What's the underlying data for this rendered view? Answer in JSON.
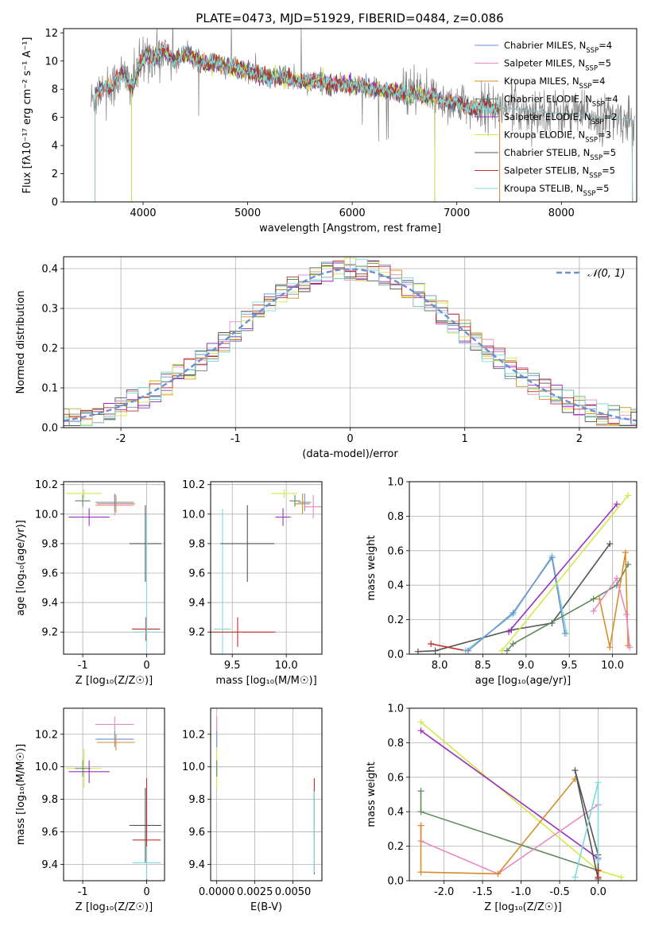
{
  "figure_title": "PLATE=0473, MJD=51929, FIBERID=0484, z=0.086",
  "colors": {
    "chabrier_miles": "#6f8fcf",
    "salpeter_miles": "#e78ac3",
    "kroupa_miles": "#d98c2a",
    "chabrier_elodie": "#5f8a5f",
    "salpeter_elodie": "#9b30c0",
    "kroupa_elodie": "#d4e84a",
    "chabrier_stelib": "#555555",
    "salpeter_stelib": "#c0302a",
    "kroupa_stelib": "#7fdada",
    "data": "#808080",
    "gaussian": "#6a8fd8"
  },
  "legend_spectrum": [
    {
      "label": "Chabrier MILES, N",
      "sub": "SSP",
      "suffix": "=4",
      "color_key": "chabrier_miles"
    },
    {
      "label": "Salpeter MILES, N",
      "sub": "SSP",
      "suffix": "=5",
      "color_key": "salpeter_miles"
    },
    {
      "label": "Kroupa MILES, N",
      "sub": "SSP",
      "suffix": "=4",
      "color_key": "kroupa_miles"
    },
    {
      "label": "Chabrier ELODIE, N",
      "sub": "SSP",
      "suffix": "=4",
      "color_key": "chabrier_elodie"
    },
    {
      "label": "Salpeter ELODIE, N",
      "sub": "SSP",
      "suffix": "=2",
      "color_key": "salpeter_elodie"
    },
    {
      "label": "Kroupa ELODIE, N",
      "sub": "SSP",
      "suffix": "=3",
      "color_key": "kroupa_elodie"
    },
    {
      "label": "Chabrier STELIB, N",
      "sub": "SSP",
      "suffix": "=5",
      "color_key": "chabrier_stelib"
    },
    {
      "label": "Salpeter STELIB, N",
      "sub": "SSP",
      "suffix": "=5",
      "color_key": "salpeter_stelib"
    },
    {
      "label": "Kroupa STELIB, N",
      "sub": "SSP",
      "suffix": "=5",
      "color_key": "kroupa_stelib"
    }
  ],
  "chart_data": [
    {
      "id": "spectrum",
      "type": "line",
      "xlabel": "wavelength [Angstrom, rest frame]",
      "ylabel": "Flux [fλ10⁻¹⁷ erg cm⁻² s⁻¹ A⁻¹]",
      "xlim": [
        3240,
        8720
      ],
      "ylim": [
        0,
        12.3
      ],
      "xticks": [
        4000,
        5000,
        6000,
        7000,
        8000
      ],
      "yticks": [
        0,
        2,
        4,
        6,
        8,
        10,
        12
      ],
      "grid": false,
      "legend": "upper right",
      "series_shape": [
        [
          3500,
          7.0
        ],
        [
          3550,
          7.6
        ],
        [
          3600,
          8.1
        ],
        [
          3650,
          8.3
        ],
        [
          3700,
          8.0
        ],
        [
          3750,
          8.8
        ],
        [
          3800,
          9.0
        ],
        [
          3850,
          8.7
        ],
        [
          3900,
          8.2
        ],
        [
          3950,
          9.3
        ],
        [
          4000,
          10.0
        ],
        [
          4050,
          10.6
        ],
        [
          4100,
          10.2
        ],
        [
          4200,
          10.7
        ],
        [
          4300,
          10.0
        ],
        [
          4400,
          10.5
        ],
        [
          4500,
          10.2
        ],
        [
          4600,
          9.8
        ],
        [
          4700,
          9.9
        ],
        [
          4800,
          9.6
        ],
        [
          4900,
          9.5
        ],
        [
          5000,
          9.3
        ],
        [
          5100,
          9.0
        ],
        [
          5200,
          8.8
        ],
        [
          5300,
          8.9
        ],
        [
          5400,
          8.7
        ],
        [
          5500,
          8.6
        ],
        [
          5600,
          8.5
        ],
        [
          5700,
          8.5
        ],
        [
          5800,
          8.3
        ],
        [
          5900,
          8.4
        ],
        [
          6000,
          8.2
        ],
        [
          6100,
          8.2
        ],
        [
          6200,
          8.0
        ],
        [
          6300,
          7.9
        ],
        [
          6400,
          7.9
        ],
        [
          6500,
          7.6
        ],
        [
          6600,
          7.7
        ],
        [
          6700,
          7.5
        ],
        [
          6800,
          7.4
        ],
        [
          6900,
          7.2
        ],
        [
          7000,
          7.0
        ],
        [
          7100,
          6.8
        ],
        [
          7200,
          6.6
        ],
        [
          7300,
          6.8
        ],
        [
          7400,
          6.7
        ]
      ]
    },
    {
      "id": "residuals",
      "type": "step",
      "xlabel": "(data-model)/error",
      "ylabel": "Normed distribution",
      "xlim": [
        -2.5,
        2.5
      ],
      "ylim": [
        0,
        0.43
      ],
      "xticks": [
        -2,
        -1,
        0,
        1,
        2
      ],
      "yticks": [
        0.0,
        0.1,
        0.2,
        0.3,
        0.4
      ],
      "grid": true,
      "legend": "upper right",
      "legend_label": "𝒩(0, 1)",
      "bin_width": 0.1
    },
    {
      "id": "age_vs_Z",
      "type": "errorbar",
      "xlabel": "Z [log₁₀(Z/Z☉)]",
      "ylabel": "age  [log₁₀(age/yr)]",
      "xlim": [
        -1.3,
        0.28
      ],
      "ylim": [
        9.05,
        10.22
      ],
      "xticks": [
        -1,
        0
      ],
      "yticks": [
        9.2,
        9.4,
        9.6,
        9.8,
        10.0,
        10.2
      ],
      "grid": true,
      "points": [
        {
          "k": "kroupa_elodie",
          "x": -0.98,
          "y": 10.14,
          "ex": 0.28,
          "ey": 0.03
        },
        {
          "k": "chabrier_elodie",
          "x": -1.0,
          "y": 10.09,
          "ex": 0.12,
          "ey": 0.04
        },
        {
          "k": "salpeter_elodie",
          "x": -0.9,
          "y": 9.98,
          "ex": 0.32,
          "ey": 0.06
        },
        {
          "k": "salpeter_miles",
          "x": -0.5,
          "y": 10.06,
          "ex": 0.3,
          "ey": 0.07
        },
        {
          "k": "kroupa_miles",
          "x": -0.48,
          "y": 10.07,
          "ex": 0.3,
          "ey": 0.06
        },
        {
          "k": "chabrier_miles",
          "x": -0.5,
          "y": 10.08,
          "ex": 0.3,
          "ey": 0.06
        },
        {
          "k": "chabrier_stelib",
          "x": -0.02,
          "y": 9.8,
          "ex": 0.25,
          "ey": 0.26
        },
        {
          "k": "salpeter_stelib",
          "x": -0.01,
          "y": 9.22,
          "ex": 0.22,
          "ey": 0.08
        },
        {
          "k": "kroupa_stelib",
          "x": 0.0,
          "y": 9.2,
          "ex": 0.2,
          "ey": 0.8
        }
      ]
    },
    {
      "id": "age_vs_mass",
      "type": "errorbar",
      "xlabel": "mass [log₁₀(M/M☉)]",
      "ylabel": "",
      "xlim": [
        9.3,
        10.33
      ],
      "ylim": [
        9.05,
        10.22
      ],
      "xticks": [
        9.5,
        10.0
      ],
      "yticks": [
        9.2,
        9.4,
        9.6,
        9.8,
        10.0,
        10.2
      ],
      "grid": true,
      "points": [
        {
          "k": "kroupa_elodie",
          "x": 9.98,
          "y": 10.14,
          "ex": 0.12,
          "ey": 0.03
        },
        {
          "k": "salpeter_elodie",
          "x": 9.97,
          "y": 9.98,
          "ex": 0.07,
          "ey": 0.06
        },
        {
          "k": "chabrier_elodie",
          "x": 10.08,
          "y": 10.09,
          "ex": 0.05,
          "ey": 0.04
        },
        {
          "k": "chabrier_miles",
          "x": 10.17,
          "y": 10.08,
          "ex": 0.06,
          "ey": 0.06
        },
        {
          "k": "kroupa_miles",
          "x": 10.15,
          "y": 10.07,
          "ex": 0.07,
          "ey": 0.07
        },
        {
          "k": "salpeter_miles",
          "x": 10.25,
          "y": 10.05,
          "ex": 0.08,
          "ey": 0.08
        },
        {
          "k": "kroupa_stelib",
          "x": 9.41,
          "y": 9.22,
          "ex": 0.08,
          "ey": 0.82
        },
        {
          "k": "chabrier_stelib",
          "x": 9.64,
          "y": 9.8,
          "ex": 0.25,
          "ey": 0.26
        },
        {
          "k": "salpeter_stelib",
          "x": 9.55,
          "y": 9.2,
          "ex": 0.35,
          "ey": 0.1
        }
      ]
    },
    {
      "id": "weight_vs_age",
      "type": "line",
      "xlabel": "age  [log₁₀(age/yr)]",
      "ylabel": "mass weight",
      "xlim": [
        7.65,
        10.28
      ],
      "ylim": [
        0,
        1.0
      ],
      "xticks": [
        8.0,
        8.5,
        9.0,
        9.5,
        10.0
      ],
      "yticks": [
        0.0,
        0.2,
        0.4,
        0.6,
        0.8,
        1.0
      ],
      "grid": true,
      "series": [
        {
          "k": "chabrier_stelib",
          "x": [
            7.75,
            7.95,
            8.83,
            9.3,
            9.97
          ],
          "y": [
            0.015,
            0.02,
            0.14,
            0.18,
            0.64
          ]
        },
        {
          "k": "salpeter_stelib",
          "x": [
            7.9,
            8.3
          ],
          "y": [
            0.06,
            0.02
          ]
        },
        {
          "k": "kroupa_stelib",
          "x": [
            8.3,
            8.85,
            9.3,
            9.47
          ],
          "y": [
            0.02,
            0.23,
            0.57,
            0.12
          ]
        },
        {
          "k": "chabrier_miles",
          "x": [
            8.33,
            8.85,
            9.3,
            9.45
          ],
          "y": [
            0.02,
            0.24,
            0.56,
            0.12
          ]
        },
        {
          "k": "salpeter_elodie",
          "x": [
            8.8,
            10.05
          ],
          "y": [
            0.13,
            0.87
          ]
        },
        {
          "k": "kroupa_elodie",
          "x": [
            8.72,
            10.18
          ],
          "y": [
            0.02,
            0.92
          ]
        },
        {
          "k": "chabrier_elodie",
          "x": [
            8.78,
            8.85,
            9.78,
            10.05,
            10.18
          ],
          "y": [
            0.02,
            0.06,
            0.32,
            0.4,
            0.52
          ]
        },
        {
          "k": "kroupa_miles",
          "x": [
            9.85,
            9.97,
            10.15,
            10.18
          ],
          "y": [
            0.32,
            0.04,
            0.59,
            0.05
          ]
        },
        {
          "k": "salpeter_miles",
          "x": [
            9.78,
            10.05,
            10.16,
            10.2
          ],
          "y": [
            0.25,
            0.44,
            0.23,
            0.04
          ]
        }
      ]
    },
    {
      "id": "mass_vs_Z",
      "type": "errorbar",
      "xlabel": "Z [log₁₀(Z/Z☉)]",
      "ylabel": "mass [log₁₀(M/M☉)]",
      "xlim": [
        -1.3,
        0.28
      ],
      "ylim": [
        9.3,
        10.36
      ],
      "xticks": [
        -1,
        0
      ],
      "yticks": [
        9.4,
        9.6,
        9.8,
        10.0,
        10.2
      ],
      "grid": true,
      "points": [
        {
          "k": "salpeter_miles",
          "x": -0.5,
          "y": 10.26,
          "ex": 0.3,
          "ey": 0.05
        },
        {
          "k": "chabrier_miles",
          "x": -0.5,
          "y": 10.17,
          "ex": 0.3,
          "ey": 0.05
        },
        {
          "k": "kroupa_miles",
          "x": -0.48,
          "y": 10.15,
          "ex": 0.3,
          "ey": 0.05
        },
        {
          "k": "kroupa_elodie",
          "x": -0.98,
          "y": 9.99,
          "ex": 0.28,
          "ey": 0.12
        },
        {
          "k": "chabrier_elodie",
          "x": -1.0,
          "y": 9.99,
          "ex": 0.12,
          "ey": 0.05
        },
        {
          "k": "salpeter_elodie",
          "x": -0.9,
          "y": 9.97,
          "ex": 0.32,
          "ey": 0.07
        },
        {
          "k": "chabrier_stelib",
          "x": -0.02,
          "y": 9.64,
          "ex": 0.25,
          "ey": 0.23
        },
        {
          "k": "salpeter_stelib",
          "x": 0.0,
          "y": 9.55,
          "ex": 0.22,
          "ey": 0.38
        },
        {
          "k": "kroupa_stelib",
          "x": 0.0,
          "y": 9.41,
          "ex": 0.22,
          "ey": 0.1
        }
      ]
    },
    {
      "id": "mass_vs_EBV",
      "type": "errorbar",
      "xlabel": "E(B-V)",
      "ylabel": "",
      "xlim": [
        -0.0004,
        0.0069
      ],
      "ylim": [
        9.3,
        10.36
      ],
      "xticks": [
        0.0,
        0.0025,
        0.005
      ],
      "xticklabels": [
        "0.0000",
        "0.0025",
        "0.0050"
      ],
      "yticks": [
        9.4,
        9.6,
        9.8,
        10.0,
        10.2
      ],
      "grid": true,
      "points": [
        {
          "k": "salpeter_miles",
          "x": 0.0,
          "y": 10.26,
          "ex": 2e-05,
          "ey": 0.05
        },
        {
          "k": "chabrier_miles",
          "x": 0.0,
          "y": 10.17,
          "ex": 2e-05,
          "ey": 0.05
        },
        {
          "k": "kroupa_elodie",
          "x": 0.0,
          "y": 9.99,
          "ex": 2e-05,
          "ey": 0.12
        },
        {
          "k": "chabrier_elodie",
          "x": 0.0,
          "y": 9.99,
          "ex": 2e-05,
          "ey": 0.05
        },
        {
          "k": "salpeter_stelib",
          "x": 0.0064,
          "y": 9.75,
          "ex": 2e-05,
          "ey": 0.18
        },
        {
          "k": "chabrier_stelib",
          "x": 0.0064,
          "y": 9.6,
          "ex": 2e-05,
          "ey": 0.26
        },
        {
          "k": "kroupa_stelib",
          "x": 0.0064,
          "y": 9.6,
          "ex": 2e-05,
          "ey": 0.25
        }
      ]
    },
    {
      "id": "weight_vs_Z",
      "type": "line",
      "xlabel": "Z [log₁₀(Z/Z☉)]",
      "ylabel": "mass weight",
      "xlim": [
        -2.45,
        0.5
      ],
      "ylim": [
        0,
        1.0
      ],
      "xticks": [
        -2.0,
        -1.5,
        -1.0,
        -0.5,
        0.0
      ],
      "yticks": [
        0.0,
        0.2,
        0.4,
        0.6,
        0.8,
        1.0
      ],
      "grid": true,
      "series": [
        {
          "k": "kroupa_elodie",
          "x": [
            -2.3,
            0.0,
            0.3
          ],
          "y": [
            0.92,
            0.06,
            0.02
          ]
        },
        {
          "k": "salpeter_elodie",
          "x": [
            -2.3,
            0.0
          ],
          "y": [
            0.87,
            0.13
          ]
        },
        {
          "k": "chabrier_elodie",
          "x": [
            -2.3,
            -2.3,
            0.0
          ],
          "y": [
            0.52,
            0.4,
            0.06
          ]
        },
        {
          "k": "salpeter_miles",
          "x": [
            -2.3,
            -2.3,
            -1.3,
            0.0
          ],
          "y": [
            0.32,
            0.23,
            0.04,
            0.44
          ]
        },
        {
          "k": "kroupa_miles",
          "x": [
            -2.3,
            -2.3,
            -1.3,
            -0.3
          ],
          "y": [
            0.32,
            0.05,
            0.04,
            0.59
          ]
        },
        {
          "k": "chabrier_stelib",
          "x": [
            0.0,
            -0.3,
            0.0,
            0.0
          ],
          "y": [
            0.01,
            0.64,
            0.15,
            0.02
          ]
        },
        {
          "k": "kroupa_stelib",
          "x": [
            -0.3,
            0.0,
            0.0
          ],
          "y": [
            0.02,
            0.57,
            0.12
          ]
        },
        {
          "k": "salpeter_stelib",
          "x": [
            0.0,
            0.0
          ],
          "y": [
            0.06,
            0.02
          ]
        }
      ]
    }
  ]
}
